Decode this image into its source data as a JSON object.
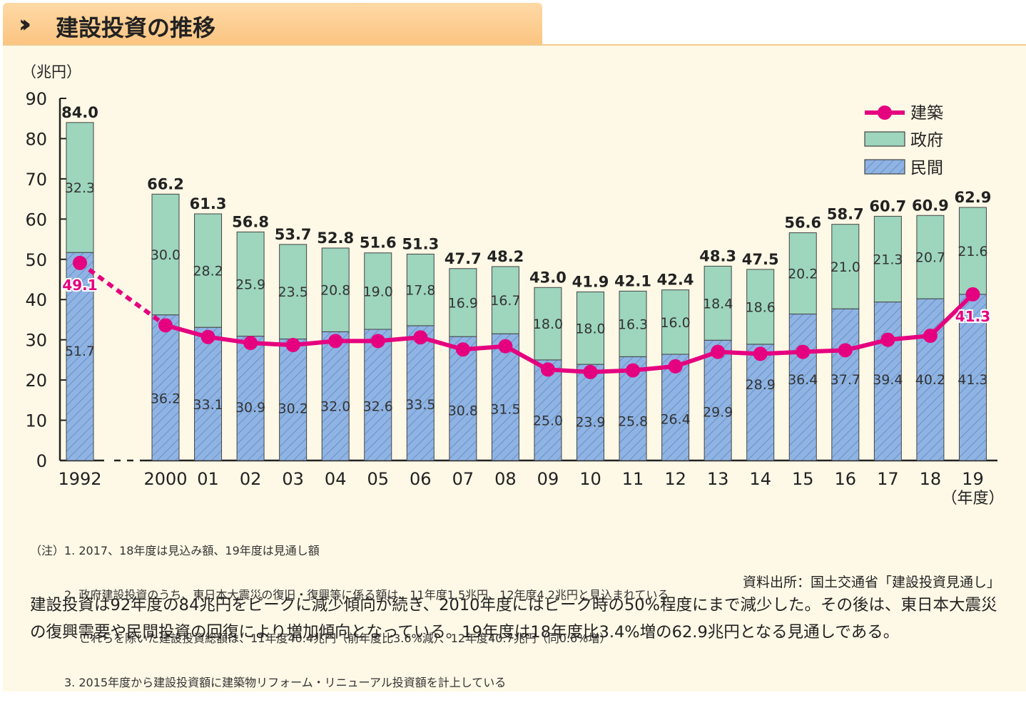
{
  "header": {
    "title": "建設投資の推移",
    "icon": "double-chevron-right-icon"
  },
  "chart_data": {
    "type": "bar",
    "stacked": true,
    "ylabel": "（兆円）",
    "xunit": "（年度）",
    "ylim": [
      0,
      90
    ],
    "yticks": [
      0,
      10,
      20,
      30,
      40,
      50,
      60,
      70,
      80,
      90
    ],
    "categories": [
      "1992",
      "2000",
      "01",
      "02",
      "03",
      "04",
      "05",
      "06",
      "07",
      "08",
      "09",
      "10",
      "11",
      "12",
      "13",
      "14",
      "15",
      "16",
      "17",
      "18",
      "19"
    ],
    "series": [
      {
        "name": "民間",
        "kind": "bar",
        "color": "#8fb4e3",
        "values": [
          51.7,
          36.2,
          33.1,
          30.9,
          30.2,
          32.0,
          32.6,
          33.5,
          30.8,
          31.5,
          25.0,
          23.9,
          25.8,
          26.4,
          29.9,
          28.9,
          36.4,
          37.7,
          39.4,
          40.2,
          41.3
        ]
      },
      {
        "name": "政府",
        "kind": "bar",
        "color": "#9dd5bd",
        "values": [
          32.3,
          30.0,
          28.2,
          25.9,
          23.5,
          20.8,
          19.0,
          17.8,
          16.9,
          16.7,
          18.0,
          18.0,
          16.3,
          16.0,
          18.4,
          18.6,
          20.2,
          21.0,
          21.3,
          20.7,
          21.6
        ]
      },
      {
        "name": "建築",
        "kind": "line",
        "color": "#e5007f",
        "values": [
          49.1,
          33.6,
          30.7,
          29.2,
          28.7,
          29.7,
          29.7,
          30.6,
          27.6,
          28.4,
          22.6,
          22.0,
          22.4,
          23.4,
          27.0,
          26.5,
          27.0,
          27.4,
          30.0,
          31.0,
          41.3
        ]
      }
    ],
    "totals": [
      "84.0",
      "66.2",
      "61.3",
      "56.8",
      "53.7",
      "52.8",
      "51.6",
      "51.3",
      "47.7",
      "48.2",
      "43.0",
      "41.9",
      "42.1",
      "42.4",
      "48.3",
      "47.5",
      "56.6",
      "58.7",
      "60.7",
      "60.9",
      "62.9"
    ],
    "labeled_line_points": {
      "0": "49.1",
      "20": "41.3"
    },
    "legend_position": "top-right"
  },
  "notes": {
    "lines": [
      "（注）1. 2017、18年度は見込み額、19年度は見通し額",
      "　　　2. 政府建設投資のうち、東日本大震災の復旧・復興等に係る額は、11年度1.5兆円、12年度4.2兆円と見込まれている",
      "　　　　 これらを除いた建設投資総額は、11年度40.4兆円（前年度比3.6%減）、12年度40.7兆円（同0.6%増）",
      "　　　3. 2015年度から建設投資額に建築物リフォーム・リニューアル投資額を計上している"
    ],
    "source": "資料出所：国土交通省「建設投資見通し」"
  },
  "summary": "建設投資は92年度の84兆円をピークに減少傾向が続き、2010年度にはピーク時の50%程度にまで減少した。その後は、東日本大震災の復興需要や民間投資の回復により増加傾向となっている。19年度は18年度比3.4%増の62.9兆円となる見通しである。"
}
